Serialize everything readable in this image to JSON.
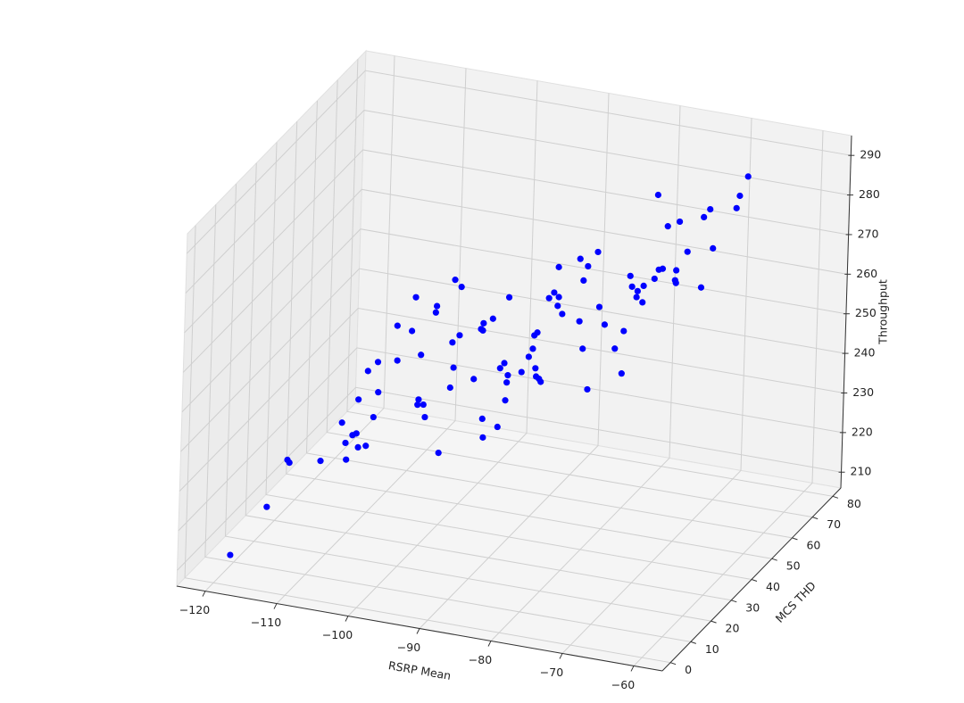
{
  "chart_data": {
    "type": "scatter3d",
    "xlabel": "RSRP Mean",
    "ylabel": "MCS THD",
    "zlabel": "Throughput",
    "color": "#0000ff",
    "grid": true,
    "xlim": [
      -124,
      -56
    ],
    "ylim": [
      -4,
      84
    ],
    "zlim": [
      206,
      295
    ],
    "xticks": [
      {
        "value": -120,
        "label": "−120"
      },
      {
        "value": -110,
        "label": "−110"
      },
      {
        "value": -100,
        "label": "−100"
      },
      {
        "value": -90,
        "label": "−90"
      },
      {
        "value": -80,
        "label": "−80"
      },
      {
        "value": -70,
        "label": "−70"
      },
      {
        "value": -60,
        "label": "−60"
      }
    ],
    "yticks": [
      0,
      10,
      20,
      30,
      40,
      50,
      60,
      70,
      80
    ],
    "zticks": [
      210,
      220,
      230,
      240,
      250,
      260,
      270,
      280,
      290
    ],
    "x": [
      -118.6,
      -115.0,
      -113.0,
      -112.8,
      -109.6,
      -107.0,
      -107.1,
      -107.5,
      -106.4,
      -106.0,
      -105.8,
      -105.0,
      -104.3,
      -105.9,
      -103.9,
      -105.0,
      -104.0,
      -102.0,
      -102.1,
      -100.6,
      -100.3,
      -99.8,
      -99.7,
      -99.2,
      -99.0,
      -99.6,
      -98.2,
      -98.1,
      -97.5,
      -96.5,
      -96.4,
      -96.2,
      -96.3,
      -95.7,
      -95.6,
      -94.1,
      -93.5,
      -93.3,
      -93.2,
      -93.1,
      -93.0,
      -92.3,
      -91.5,
      -91.4,
      -91.0,
      -90.7,
      -90.6,
      -90.8,
      -90.7,
      -89.2,
      -88.5,
      -88.1,
      -88.0,
      -87.7,
      -87.8,
      -87.7,
      -87.4,
      -87.2,
      -86.6,
      -86.1,
      -85.7,
      -85.6,
      -85.2,
      -85.7,
      -83.4,
      -83.5,
      -83.0,
      -83.1,
      -82.4,
      -82.7,
      -81.7,
      -81.4,
      -80.8,
      -79.7,
      -78.9,
      -78.8,
      -78.3,
      -78.1,
      -77.5,
      -77.6,
      -77.0,
      -76.9,
      -75.8,
      -75.4,
      -75.0,
      -75.7,
      -74.6,
      -73.7,
      -73.6,
      -73.6,
      -73.4,
      -72.5,
      -71.0,
      -70.9,
      -70.3,
      -69.9,
      -67.6,
      -67.3,
      -66.5
    ],
    "y": [
      3.0,
      7.7,
      10.2,
      10.5,
      14.6,
      18.1,
      17.9,
      17.3,
      18.8,
      19.3,
      19.6,
      20.6,
      21.5,
      19.5,
      22.1,
      20.6,
      21.9,
      24.4,
      24.3,
      26.3,
      26.7,
      27.3,
      27.4,
      28.1,
      28.3,
      27.6,
      29.4,
      29.5,
      30.3,
      31.6,
      31.7,
      31.9,
      31.8,
      32.7,
      32.6,
      34.7,
      35.5,
      35.7,
      35.6,
      36.0,
      36.2,
      37.0,
      38.0,
      38.1,
      38.7,
      39.1,
      39.2,
      39.0,
      39.1,
      41.0,
      41.9,
      42.4,
      42.6,
      43.0,
      42.9,
      43.0,
      43.4,
      43.6,
      44.4,
      45.1,
      45.6,
      45.7,
      46.2,
      45.6,
      48.5,
      48.4,
      49.1,
      48.9,
      49.9,
      49.5,
      50.7,
      51.1,
      51.9,
      53.4,
      54.3,
      54.4,
      55.1,
      55.4,
      56.1,
      56.0,
      56.9,
      56.9,
      58.3,
      58.9,
      59.4,
      58.5,
      59.9,
      61.1,
      61.2,
      61.2,
      61.5,
      62.6,
      64.6,
      64.6,
      65.5,
      66.0,
      69.0,
      69.4,
      70.4
    ],
    "z": [
      211.9,
      222.7,
      233.9,
      233.1,
      232.4,
      231.7,
      236.0,
      241.3,
      237.7,
      238.0,
      234.4,
      234.5,
      241.5,
      246.5,
      247.6,
      253.4,
      255.3,
      255.0,
      263.8,
      261.9,
      270.3,
      243.0,
      244.3,
      242.8,
      239.6,
      255.5,
      265.7,
      267.3,
      230.0,
      246.1,
      257.5,
      251.1,
      273.3,
      259.0,
      271.3,
      247.4,
      259.8,
      259.4,
      261.3,
      237.0,
      232.2,
      262.0,
      234.4,
      249.2,
      250.3,
      245.3,
      247.1,
      240.8,
      266.8,
      247.4,
      251.0,
      252.9,
      256.2,
      256.8,
      247.8,
      245.7,
      245.0,
      244.2,
      265.1,
      266.3,
      262.8,
      265.0,
      260.6,
      272.6,
      258.1,
      273.9,
      251.0,
      268.3,
      240.5,
      271.7,
      275.0,
      261.0,
      256.3,
      249.8,
      243.3,
      254.0,
      267.7,
      264.9,
      263.6,
      262.1,
      260.5,
      264.7,
      266.1,
      268.2,
      268.3,
      287.2,
      278.9,
      264.9,
      264.2,
      267.4,
      279.6,
      271.7,
      262.1,
      279.9,
      281.6,
      271.6,
      280.9,
      283.9,
      288.5
    ]
  }
}
